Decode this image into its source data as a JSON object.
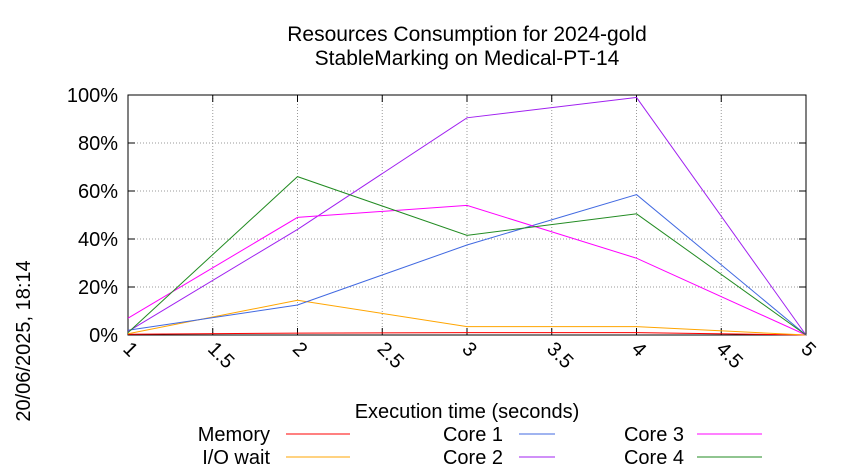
{
  "chart_data": {
    "type": "line",
    "title": "Resources Consumption for 2024-gold",
    "subtitle": "StableMarking on Medical-PT-14",
    "xlabel": "Execution time (seconds)",
    "ylabel": "",
    "side_label": "20/06/2025, 18:14",
    "xlim": [
      1,
      5
    ],
    "ylim": [
      0,
      100
    ],
    "x_ticks": [
      "1",
      "1.5",
      "2",
      "2.5",
      "3",
      "3.5",
      "4",
      "4.5",
      "5"
    ],
    "y_ticks": [
      "0%",
      "20%",
      "40%",
      "60%",
      "80%",
      "100%"
    ],
    "grid": true,
    "legend_position": "bottom",
    "x": [
      1,
      2,
      3,
      4,
      5
    ],
    "series": [
      {
        "name": "Memory",
        "color": "#ff0000",
        "values": [
          0.3,
          0.8,
          1.0,
          1.0,
          0
        ]
      },
      {
        "name": "I/O wait",
        "color": "#ffa500",
        "values": [
          0.5,
          14.5,
          3.5,
          3.5,
          0
        ]
      },
      {
        "name": "Core 1",
        "color": "#4169e1",
        "values": [
          2,
          12.5,
          37.5,
          58.5,
          0
        ]
      },
      {
        "name": "Core 2",
        "color": "#a020f0",
        "values": [
          1.5,
          44,
          90.5,
          99,
          0
        ]
      },
      {
        "name": "Core 3",
        "color": "#ff00ff",
        "values": [
          7,
          49,
          54,
          32,
          0
        ]
      },
      {
        "name": "Core 4",
        "color": "#228b22",
        "values": [
          1,
          66,
          41.5,
          50.5,
          0
        ]
      }
    ]
  }
}
